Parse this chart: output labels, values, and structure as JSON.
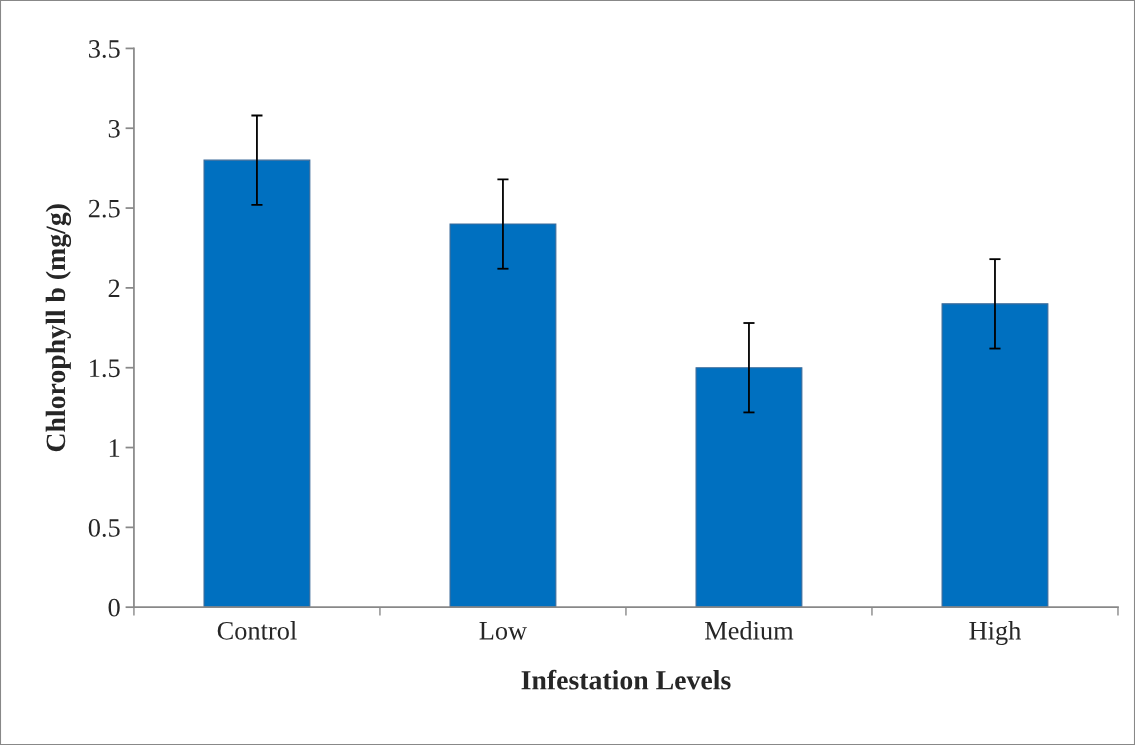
{
  "chart_data": {
    "type": "bar",
    "xlabel": "Infestation Levels",
    "ylabel": "Chlorophyll b (mg/g)",
    "categories": [
      "Control",
      "Low",
      "Medium",
      "High"
    ],
    "values": [
      2.8,
      2.4,
      1.5,
      1.9
    ],
    "errors": [
      0.28,
      0.28,
      0.28,
      0.28
    ],
    "color": "#0070c0",
    "ylim": [
      0,
      3.5
    ],
    "yticks": [
      0,
      0.5,
      1,
      1.5,
      2,
      2.5,
      3,
      3.5
    ],
    "grid": false,
    "legend": false
  }
}
